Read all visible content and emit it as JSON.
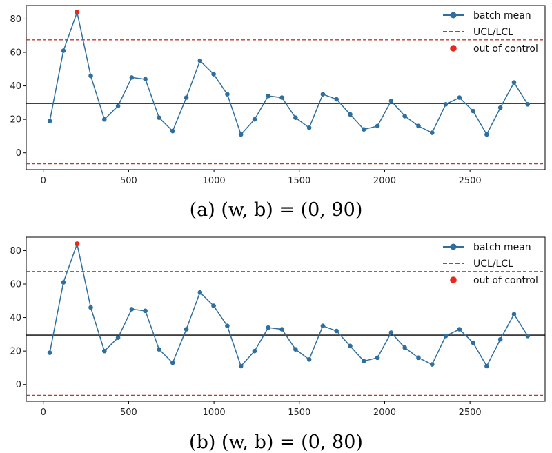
{
  "chart_data": [
    {
      "type": "line",
      "caption": "(a) (w, b) = (0, 90)",
      "x": [
        38,
        118,
        198,
        278,
        358,
        438,
        518,
        598,
        678,
        758,
        838,
        918,
        998,
        1078,
        1158,
        1238,
        1318,
        1398,
        1478,
        1558,
        1638,
        1718,
        1798,
        1878,
        1958,
        2038,
        2118,
        2198,
        2278,
        2358,
        2438,
        2518,
        2598,
        2678,
        2758,
        2838
      ],
      "series": [
        {
          "name": "batch mean",
          "color": "#2f6f9f",
          "marker": "circle",
          "values": [
            19,
            61,
            84,
            46,
            20,
            28,
            45,
            44,
            21,
            13,
            33,
            55,
            47,
            35,
            11,
            20,
            34,
            33,
            21,
            15,
            35,
            32,
            23,
            14,
            16,
            31,
            22,
            16,
            12,
            29,
            33,
            25,
            11,
            27,
            42,
            29
          ]
        }
      ],
      "out_of_control": {
        "name": "out of control",
        "color": "#e8281e",
        "points": [
          {
            "x": 198,
            "y": 84
          }
        ]
      },
      "reference_lines": [
        {
          "name": "UCL/LCL",
          "style": "dashed",
          "color": "#c0392b",
          "values": [
            67.5,
            -6.5
          ]
        },
        {
          "name": "center",
          "style": "solid",
          "color": "#000000",
          "values": [
            29.5
          ]
        }
      ],
      "xlim": [
        -100,
        2940
      ],
      "ylim": [
        -10,
        88
      ],
      "xticks": [
        "0",
        "500",
        "1000",
        "1500",
        "2000",
        "2500"
      ],
      "yticks": [
        "0",
        "20",
        "40",
        "60",
        "80"
      ],
      "legend": {
        "placement": "top-right",
        "entries": [
          "batch mean",
          "UCL/LCL",
          "out of control"
        ]
      },
      "grid": false
    },
    {
      "type": "line",
      "caption": "(b) (w, b) = (0, 80)",
      "x": [
        38,
        118,
        198,
        278,
        358,
        438,
        518,
        598,
        678,
        758,
        838,
        918,
        998,
        1078,
        1158,
        1238,
        1318,
        1398,
        1478,
        1558,
        1638,
        1718,
        1798,
        1878,
        1958,
        2038,
        2118,
        2198,
        2278,
        2358,
        2438,
        2518,
        2598,
        2678,
        2758,
        2838
      ],
      "series": [
        {
          "name": "batch mean",
          "color": "#2f6f9f",
          "marker": "circle",
          "values": [
            19,
            61,
            84,
            46,
            20,
            28,
            45,
            44,
            21,
            13,
            33,
            55,
            47,
            35,
            11,
            20,
            34,
            33,
            21,
            15,
            35,
            32,
            23,
            14,
            16,
            31,
            22,
            16,
            12,
            29,
            33,
            25,
            11,
            27,
            42,
            29
          ]
        }
      ],
      "out_of_control": {
        "name": "out of control",
        "color": "#e8281e",
        "points": [
          {
            "x": 198,
            "y": 84
          }
        ]
      },
      "reference_lines": [
        {
          "name": "UCL/LCL",
          "style": "dashed",
          "color": "#c0392b",
          "values": [
            67.5,
            -6.5
          ]
        },
        {
          "name": "center",
          "style": "solid",
          "color": "#000000",
          "values": [
            29.5
          ]
        }
      ],
      "xlim": [
        -100,
        2940
      ],
      "ylim": [
        -10,
        88
      ],
      "xticks": [
        "0",
        "500",
        "1000",
        "1500",
        "2000",
        "2500"
      ],
      "yticks": [
        "0",
        "20",
        "40",
        "60",
        "80"
      ],
      "legend": {
        "placement": "top-right",
        "entries": [
          "batch mean",
          "UCL/LCL",
          "out of control"
        ]
      },
      "grid": false
    }
  ]
}
